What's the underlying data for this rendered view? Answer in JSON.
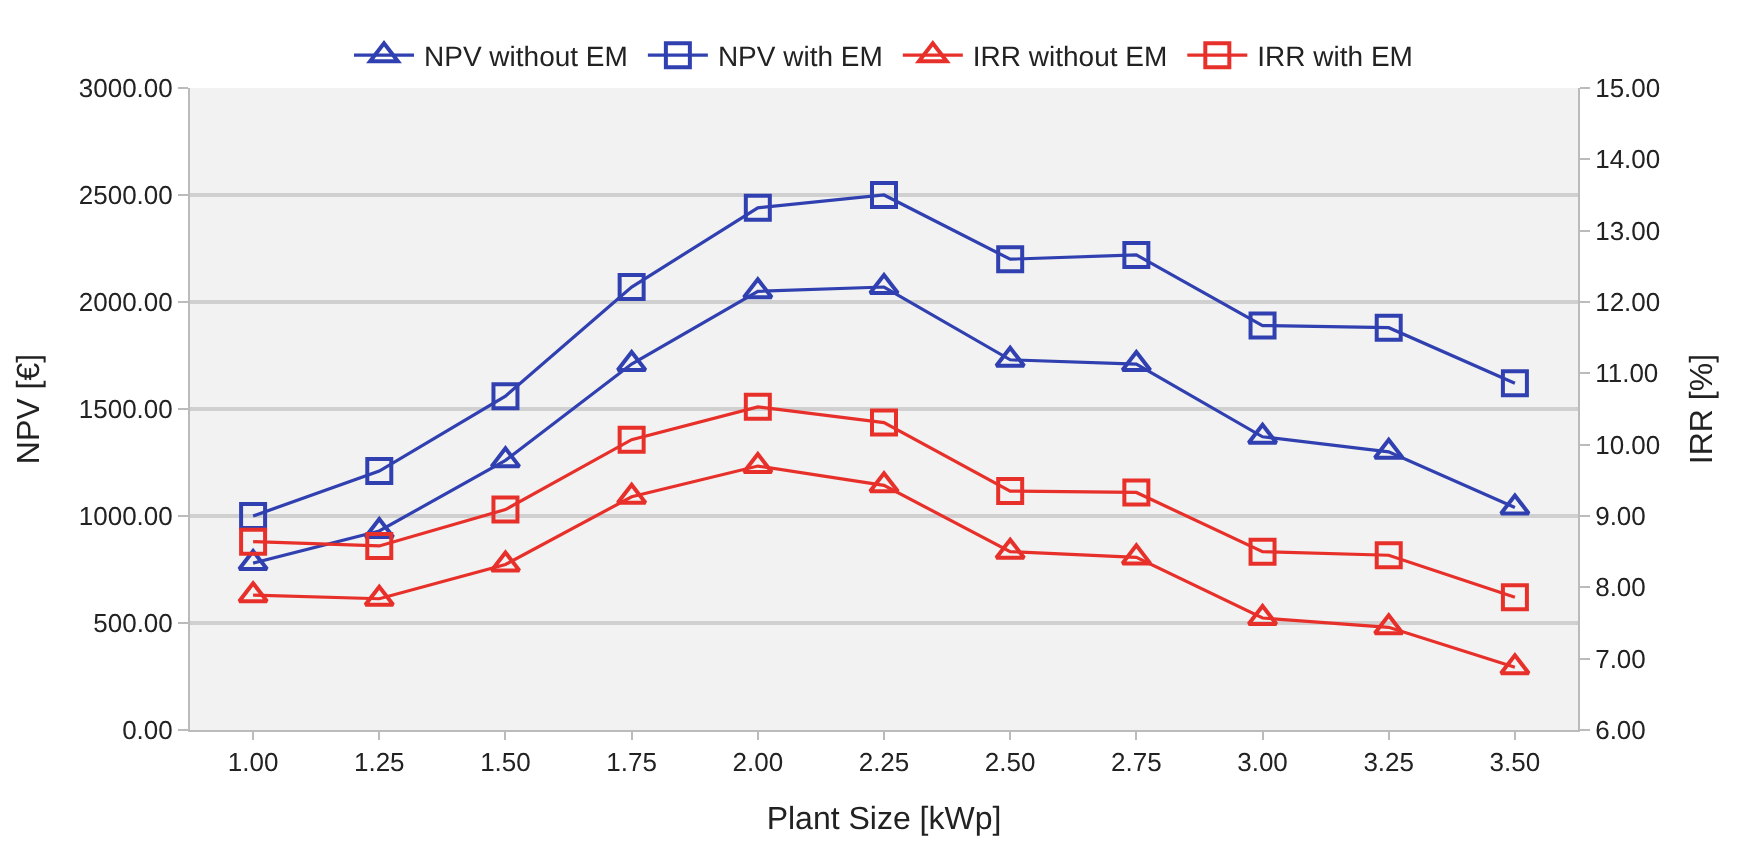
{
  "chart_data": {
    "type": "line",
    "xlabel": "Plant Size [kWp]",
    "ylabel": "NPV [€]",
    "y2label": "IRR [%]",
    "categories": [
      "1.00",
      "1.25",
      "1.50",
      "1.75",
      "2.00",
      "2.25",
      "2.50",
      "2.75",
      "3.00",
      "3.25",
      "3.50"
    ],
    "series": [
      {
        "name": "NPV without EM",
        "color": "#3040b0",
        "marker": "triangle",
        "values": [
          780,
          930,
          1260,
          1710,
          2050,
          2070,
          1730,
          1710,
          1370,
          1300,
          1040
        ]
      },
      {
        "name": "NPV with EM",
        "color": "#3040b0",
        "marker": "square",
        "values": [
          1000,
          1210,
          1560,
          2070,
          2440,
          2500,
          2200,
          2220,
          1890,
          1880,
          1620
        ]
      },
      {
        "name": "IRR without EM",
        "color": "#e8302a",
        "marker": "triangle",
        "axis": "y2",
        "values": [
          7.89,
          7.84,
          8.32,
          9.27,
          9.7,
          9.43,
          8.5,
          8.42,
          7.57,
          7.44,
          6.88
        ]
      },
      {
        "name": "IRR with EM",
        "color": "#e8302a",
        "marker": "square",
        "axis": "y2",
        "values": [
          8.64,
          8.58,
          9.09,
          10.07,
          10.53,
          10.31,
          9.35,
          9.33,
          8.5,
          8.45,
          7.86
        ]
      }
    ],
    "ylim": [
      0,
      3000
    ],
    "yticks": [
      {
        "value": 0,
        "label": "0.00"
      },
      {
        "value": 500,
        "label": "500.00"
      },
      {
        "value": 1000,
        "label": "1000.00"
      },
      {
        "value": 1500,
        "label": "1500.00"
      },
      {
        "value": 2000,
        "label": "2000.00"
      },
      {
        "value": 2500,
        "label": "2500.00"
      },
      {
        "value": 3000,
        "label": "3000.00"
      }
    ],
    "y2lim": [
      6,
      15
    ],
    "y2ticks": [
      {
        "value": 6,
        "label": "6.00"
      },
      {
        "value": 7,
        "label": "7.00"
      },
      {
        "value": 8,
        "label": "8.00"
      },
      {
        "value": 9,
        "label": "9.00"
      },
      {
        "value": 10,
        "label": "10.00"
      },
      {
        "value": 11,
        "label": "11.00"
      },
      {
        "value": 12,
        "label": "12.00"
      },
      {
        "value": 13,
        "label": "13.00"
      },
      {
        "value": 14,
        "label": "14.00"
      },
      {
        "value": 15,
        "label": "15.00"
      }
    ],
    "grid": "y",
    "legend": "top",
    "line_style": "solid"
  }
}
